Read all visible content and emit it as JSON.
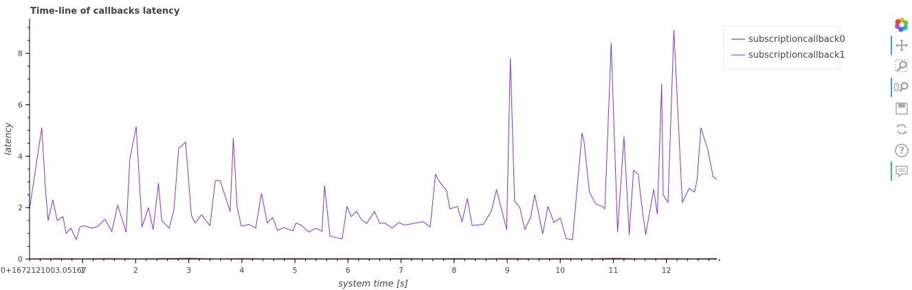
{
  "chart_data": {
    "type": "line",
    "title": "Time-line of callbacks latency",
    "xlabel": "system time [s]",
    "ylabel": "latency",
    "x_offset_label": "0+1672121003.05167",
    "xlim": [
      0,
      12.95
    ],
    "ylim": [
      0,
      9.35
    ],
    "x_ticks": [
      1,
      2,
      3,
      4,
      5,
      6,
      7,
      8,
      9,
      10,
      11,
      12
    ],
    "y_ticks": [
      0,
      2,
      4,
      6,
      8
    ],
    "grid": true,
    "legend_position": "top-right",
    "series": [
      {
        "name": "subscriptioncallback0",
        "color": "#8b1a1a",
        "x": [
          0,
          0.5,
          1,
          1.5,
          2,
          2.5,
          3,
          3.5,
          4,
          4.5,
          5,
          5.5,
          6,
          6.5,
          7,
          7.5,
          8,
          8.5,
          9,
          9.5,
          10,
          10.5,
          11,
          11.5,
          12,
          12.5,
          12.95
        ],
        "y": [
          0.01,
          0.02,
          0.01,
          0.02,
          0.01,
          0.02,
          0.03,
          0.01,
          0.02,
          0.01,
          0.02,
          0.01,
          0.02,
          0.01,
          0.02,
          0.01,
          0.02,
          0.01,
          0.02,
          0.01,
          0.02,
          0.01,
          0.03,
          0.01,
          0.02,
          0.01,
          0.02
        ]
      },
      {
        "name": "subscriptioncallback1",
        "color": "#8a2be2",
        "x": [
          0.0,
          0.23,
          0.3,
          0.35,
          0.44,
          0.52,
          0.63,
          0.69,
          0.78,
          0.88,
          0.95,
          1.02,
          1.17,
          1.29,
          1.42,
          1.55,
          1.66,
          1.82,
          1.89,
          2.01,
          2.12,
          2.24,
          2.33,
          2.43,
          2.49,
          2.63,
          2.72,
          2.81,
          2.94,
          3.05,
          3.12,
          3.24,
          3.4,
          3.5,
          3.59,
          3.78,
          3.84,
          3.91,
          3.99,
          4.14,
          4.26,
          4.37,
          4.48,
          4.58,
          4.67,
          4.79,
          4.96,
          5.02,
          5.12,
          5.26,
          5.4,
          5.51,
          5.56,
          5.66,
          5.75,
          5.89,
          5.98,
          6.06,
          6.16,
          6.25,
          6.35,
          6.5,
          6.6,
          6.7,
          6.83,
          6.96,
          7.06,
          7.27,
          7.42,
          7.55,
          7.65,
          7.71,
          7.86,
          7.92,
          8.06,
          8.15,
          8.25,
          8.34,
          8.55,
          8.7,
          8.8,
          8.99,
          9.06,
          9.14,
          9.24,
          9.33,
          9.44,
          9.52,
          9.67,
          9.77,
          9.88,
          10.0,
          10.11,
          10.23,
          10.41,
          10.45,
          10.55,
          10.67,
          10.79,
          10.84,
          10.96,
          11.08,
          11.2,
          11.3,
          11.38,
          11.47,
          11.53,
          11.61,
          11.76,
          11.83,
          11.91,
          11.94,
          12.03,
          12.14,
          12.3,
          12.43,
          12.53,
          12.58,
          12.65,
          12.78,
          12.88,
          12.95
        ],
        "y": [
          1.95,
          5.1,
          2.7,
          1.5,
          2.3,
          1.5,
          1.65,
          1.0,
          1.2,
          0.75,
          1.25,
          1.3,
          1.2,
          1.28,
          1.55,
          1.08,
          2.1,
          1.05,
          3.9,
          5.15,
          1.25,
          2.0,
          1.15,
          2.95,
          1.5,
          1.2,
          1.9,
          4.3,
          4.55,
          1.7,
          1.4,
          1.72,
          1.3,
          3.05,
          3.05,
          1.85,
          4.7,
          2.05,
          1.28,
          1.35,
          1.2,
          2.55,
          1.4,
          1.62,
          1.12,
          1.22,
          1.1,
          1.4,
          1.32,
          1.05,
          1.2,
          1.08,
          2.85,
          0.9,
          0.85,
          0.78,
          2.05,
          1.65,
          1.85,
          1.55,
          1.38,
          1.85,
          1.38,
          1.4,
          1.2,
          1.42,
          1.32,
          1.4,
          1.45,
          1.25,
          3.3,
          3.05,
          2.65,
          1.95,
          2.05,
          1.45,
          2.35,
          1.3,
          1.35,
          1.85,
          2.7,
          1.15,
          7.8,
          2.25,
          2.0,
          1.15,
          1.62,
          2.5,
          0.98,
          2.05,
          1.42,
          1.6,
          0.8,
          0.75,
          4.9,
          4.55,
          2.6,
          2.15,
          2.05,
          1.95,
          8.4,
          1.05,
          4.75,
          0.95,
          3.45,
          3.3,
          2.2,
          0.95,
          2.7,
          1.75,
          6.8,
          2.5,
          2.2,
          8.9,
          2.2,
          2.75,
          2.6,
          3.1,
          5.1,
          4.25,
          3.2,
          3.1
        ]
      }
    ]
  },
  "toolbar": {
    "tools": [
      "bokeh-logo-icon",
      "pan-icon",
      "box-zoom-icon",
      "wheel-zoom-icon",
      "save-icon",
      "reset-icon",
      "help-icon",
      "hover-icon"
    ]
  }
}
